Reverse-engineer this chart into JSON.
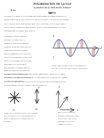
{
  "title": "POLARIZACIÓN DE LA LUZ",
  "subtitle": "la polarización de onda media homínea",
  "field_label": "Fecha:",
  "section": "MARCO",
  "background_color": "#ffffff",
  "text_color": "#333333",
  "fig1_wave_color": "#4466cc",
  "fig1_ellipse_color": "#cc8888",
  "fig1_ellipse_edge": "#bb6666",
  "fig1_axis_color": "#888888",
  "fig2a_arrow_color": "#222222",
  "fig2b_arrow_color": "#222222",
  "fig3_line_color": "#222222"
}
